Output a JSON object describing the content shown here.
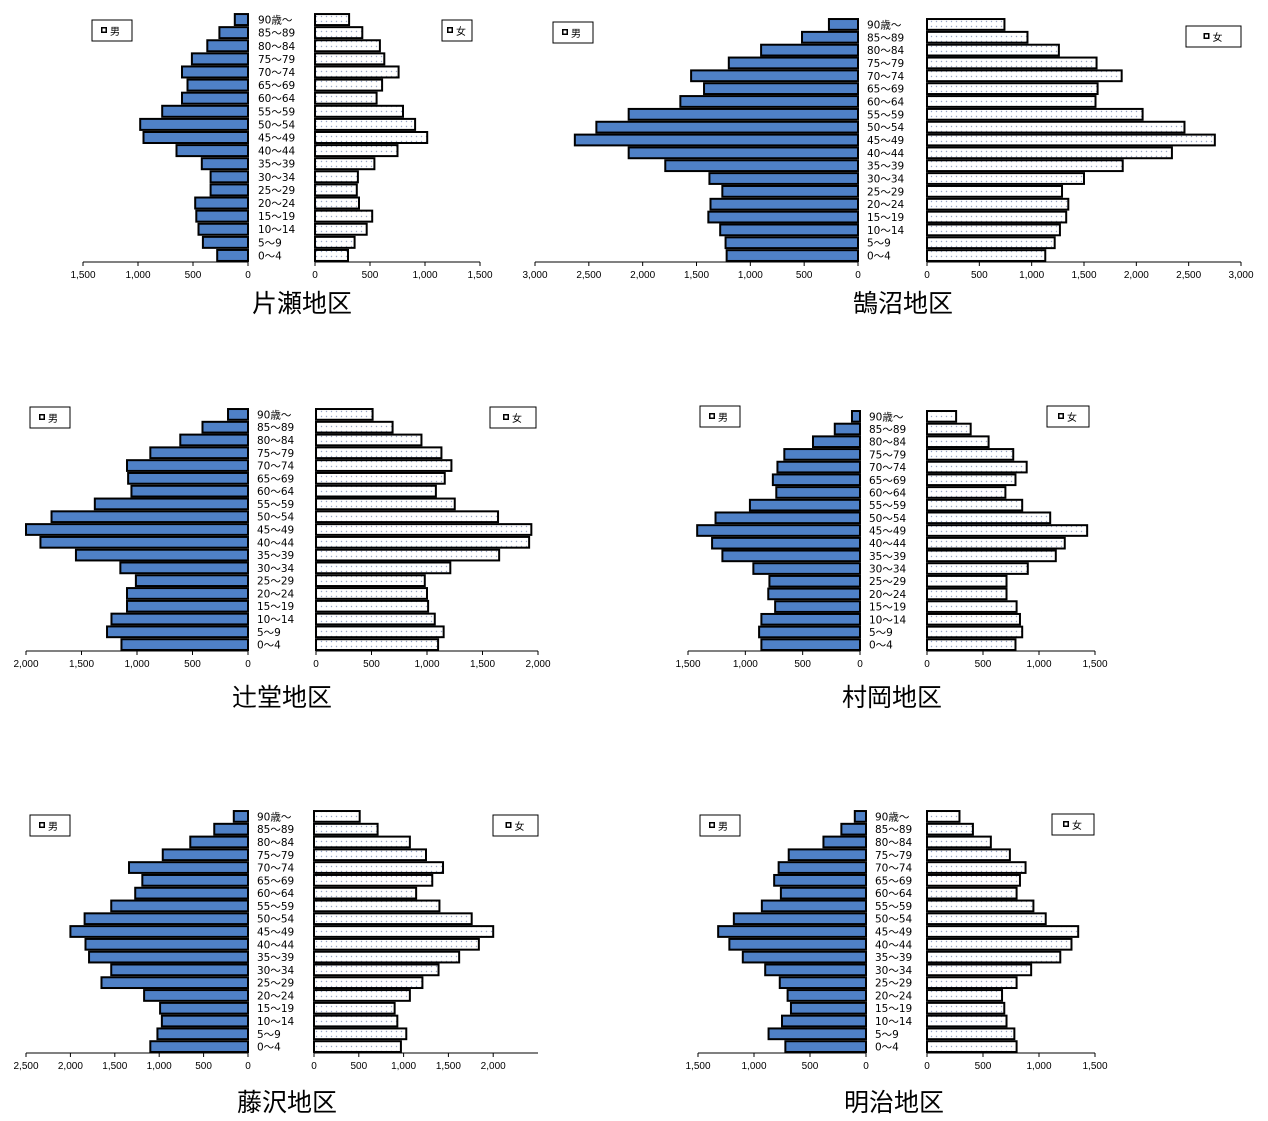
{
  "age_groups": [
    "0～4",
    "5～9",
    "10～14",
    "15～19",
    "20～24",
    "25～29",
    "30～34",
    "35～39",
    "40～44",
    "45～49",
    "50～54",
    "55～59",
    "60～64",
    "65～69",
    "70～74",
    "75～79",
    "80～84",
    "85～89",
    "90歳～"
  ],
  "legend": {
    "male": "男",
    "female": "女"
  },
  "colors": {
    "male_fill": "#4f81c7",
    "female_fill": "#ffffff",
    "female_dots": "#9aa7c8",
    "stroke": "#000000"
  },
  "chart_data": [
    {
      "type": "bar",
      "title": "片瀬地区",
      "male_ticks": [
        "1,500",
        "1,000",
        "500",
        "0"
      ],
      "female_ticks": [
        "0",
        "500",
        "1,000",
        "1,500"
      ],
      "xlim": [
        0,
        1500
      ],
      "series": [
        {
          "name": "男",
          "values": [
            280,
            410,
            450,
            470,
            480,
            340,
            340,
            420,
            650,
            950,
            980,
            780,
            600,
            550,
            600,
            510,
            370,
            260,
            120
          ]
        },
        {
          "name": "女",
          "values": [
            300,
            360,
            470,
            520,
            400,
            380,
            390,
            540,
            750,
            1020,
            910,
            800,
            560,
            610,
            760,
            630,
            590,
            430,
            310
          ]
        }
      ]
    },
    {
      "type": "bar",
      "title": "鵠沼地区",
      "male_ticks": [
        "3,000",
        "2,500",
        "2,000",
        "1,500",
        "1,000",
        "500",
        "0"
      ],
      "female_ticks": [
        "0",
        "500",
        "1,000",
        "1,500",
        "2,000",
        "2,500",
        "3,000"
      ],
      "xlim": [
        0,
        3000
      ],
      "series": [
        {
          "name": "男",
          "values": [
            1220,
            1230,
            1280,
            1390,
            1370,
            1260,
            1380,
            1790,
            2130,
            2630,
            2430,
            2130,
            1650,
            1430,
            1550,
            1200,
            900,
            520,
            270
          ]
        },
        {
          "name": "女",
          "values": [
            1130,
            1220,
            1270,
            1330,
            1350,
            1290,
            1500,
            1870,
            2340,
            2750,
            2460,
            2060,
            1610,
            1630,
            1860,
            1620,
            1260,
            960,
            740
          ]
        }
      ]
    },
    {
      "type": "bar",
      "title": "辻堂地区",
      "male_ticks": [
        "2,000",
        "1,500",
        "1,000",
        "500",
        "0"
      ],
      "female_ticks": [
        "0",
        "500",
        "1,000",
        "1,500",
        "2,000"
      ],
      "xlim": [
        0,
        2000
      ],
      "series": [
        {
          "name": "男",
          "values": [
            1140,
            1270,
            1230,
            1090,
            1090,
            1010,
            1150,
            1550,
            1870,
            2000,
            1770,
            1380,
            1050,
            1080,
            1090,
            880,
            610,
            410,
            180
          ]
        },
        {
          "name": "女",
          "values": [
            1100,
            1150,
            1070,
            1010,
            1000,
            980,
            1210,
            1650,
            1920,
            1940,
            1640,
            1250,
            1080,
            1160,
            1220,
            1130,
            950,
            690,
            510
          ]
        }
      ]
    },
    {
      "type": "bar",
      "title": "村岡地区",
      "male_ticks": [
        "1,500",
        "1,000",
        "500",
        "0"
      ],
      "female_ticks": [
        "0",
        "500",
        "1,000",
        "1,500"
      ],
      "xlim": [
        0,
        1500
      ],
      "series": [
        {
          "name": "男",
          "values": [
            860,
            880,
            860,
            740,
            800,
            790,
            930,
            1200,
            1290,
            1420,
            1260,
            960,
            730,
            760,
            720,
            660,
            410,
            220,
            70
          ]
        },
        {
          "name": "女",
          "values": [
            790,
            850,
            830,
            800,
            710,
            710,
            900,
            1150,
            1230,
            1430,
            1100,
            850,
            700,
            790,
            890,
            770,
            550,
            390,
            260
          ]
        }
      ]
    },
    {
      "type": "bar",
      "title": "藤沢地区",
      "male_ticks": [
        "2,500",
        "2,000",
        "1,500",
        "1,000",
        "500",
        "0"
      ],
      "female_ticks": [
        "0",
        "500",
        "1,000",
        "1,500",
        "2,000"
      ],
      "xlim": [
        0,
        2500
      ],
      "series": [
        {
          "name": "男",
          "values": [
            1100,
            1020,
            970,
            990,
            1170,
            1650,
            1540,
            1790,
            1830,
            2000,
            1840,
            1540,
            1270,
            1190,
            1340,
            960,
            650,
            380,
            160
          ]
        },
        {
          "name": "女",
          "values": [
            970,
            1030,
            930,
            900,
            1070,
            1210,
            1390,
            1620,
            1840,
            2000,
            1760,
            1400,
            1140,
            1320,
            1440,
            1250,
            1070,
            710,
            510
          ]
        }
      ]
    },
    {
      "type": "bar",
      "title": "明治地区",
      "male_ticks": [
        "1,500",
        "1,000",
        "500",
        "0"
      ],
      "female_ticks": [
        "0",
        "500",
        "1,000",
        "1,500"
      ],
      "xlim": [
        0,
        1500
      ],
      "series": [
        {
          "name": "男",
          "values": [
            720,
            870,
            750,
            670,
            700,
            770,
            900,
            1100,
            1220,
            1320,
            1180,
            930,
            760,
            820,
            780,
            690,
            380,
            220,
            100
          ]
        },
        {
          "name": "女",
          "values": [
            800,
            780,
            710,
            690,
            670,
            800,
            930,
            1190,
            1290,
            1350,
            1060,
            950,
            800,
            830,
            880,
            740,
            570,
            410,
            290
          ]
        }
      ]
    }
  ]
}
